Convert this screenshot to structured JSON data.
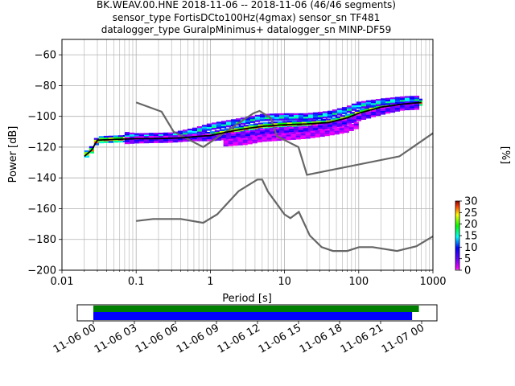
{
  "chart_data": {
    "type": "heatmap",
    "title_lines": [
      "BK.WEAV.00.HNE   2018-11-06 -- 2018-11-06  (46/46 segments)",
      "sensor_type FortisDCto100Hz(4gmax) sensor_sn TF481",
      "datalogger_type GuralpMinimus+ datalogger_sn MINP-DF59"
    ],
    "xlabel": "Period [s]",
    "ylabel": "Power [dB]",
    "xscale": "log",
    "xlim": [
      0.01,
      1000
    ],
    "ylim": [
      -200,
      -50
    ],
    "xtick_values": [
      0.01,
      0.1,
      1,
      10,
      100,
      1000
    ],
    "xtick_labels": [
      "0.01",
      "0.1",
      "1",
      "10",
      "100",
      "1000"
    ],
    "ytick_values": [
      -60,
      -80,
      -100,
      -120,
      -140,
      -160,
      -180,
      -200
    ],
    "ytick_labels": [
      "−60",
      "−80",
      "−100",
      "−120",
      "−140",
      "−160",
      "−180",
      "−200"
    ],
    "grid": true,
    "colorbar": {
      "label": "[%]",
      "min": 0,
      "max": 30,
      "tick_values": [
        0,
        5,
        10,
        15,
        20,
        25,
        30
      ],
      "tick_labels": [
        "0",
        "5",
        "10",
        "15",
        "20",
        "25",
        "30"
      ]
    },
    "noise_models": [
      {
        "id": "nhnm",
        "points": [
          [
            0.1,
            -91
          ],
          [
            0.22,
            -97
          ],
          [
            0.32,
            -110
          ],
          [
            0.8,
            -120
          ],
          [
            3.8,
            -98
          ],
          [
            4.6,
            -96.5
          ],
          [
            6.5,
            -101
          ],
          [
            7.9,
            -113
          ],
          [
            15.4,
            -120
          ],
          [
            20,
            -138
          ],
          [
            354,
            -126
          ],
          [
            1000,
            -111
          ]
        ]
      },
      {
        "id": "nlnm",
        "points": [
          [
            0.1,
            -168
          ],
          [
            0.17,
            -166.7
          ],
          [
            0.4,
            -166.7
          ],
          [
            0.8,
            -169.2
          ],
          [
            1.24,
            -163.7
          ],
          [
            2.4,
            -148.6
          ],
          [
            4.3,
            -141.1
          ],
          [
            5,
            -141.1
          ],
          [
            6,
            -149
          ],
          [
            10,
            -163.8
          ],
          [
            12,
            -166.2
          ],
          [
            15.6,
            -162.1
          ],
          [
            21.9,
            -177.5
          ],
          [
            31.6,
            -185
          ],
          [
            45,
            -187.5
          ],
          [
            70,
            -187.5
          ],
          [
            101,
            -185
          ],
          [
            154,
            -185
          ],
          [
            328,
            -187.5
          ],
          [
            600,
            -184.4
          ],
          [
            1000,
            -178
          ]
        ]
      }
    ],
    "mean_curve": {
      "points": [
        [
          0.02,
          -126
        ],
        [
          0.025,
          -122
        ],
        [
          0.03,
          -115.5
        ],
        [
          0.05,
          -115
        ],
        [
          0.1,
          -114.5
        ],
        [
          0.2,
          -114.5
        ],
        [
          0.4,
          -114
        ],
        [
          0.7,
          -113
        ],
        [
          1,
          -112.5
        ],
        [
          2,
          -109.5
        ],
        [
          3,
          -108
        ],
        [
          5,
          -106.5
        ],
        [
          10,
          -105.5
        ],
        [
          20,
          -105
        ],
        [
          40,
          -104
        ],
        [
          70,
          -101
        ],
        [
          100,
          -98
        ],
        [
          200,
          -94
        ],
        [
          400,
          -92
        ],
        [
          700,
          -91
        ]
      ]
    },
    "psd_bands": [
      {
        "points": [
          [
            0.02,
            -126
          ],
          [
            0.025,
            -122
          ],
          [
            0.03,
            -115.5
          ],
          [
            0.05,
            -115
          ],
          [
            0.1,
            -114.5
          ],
          [
            0.2,
            -114.5
          ],
          [
            0.4,
            -114
          ],
          [
            0.7,
            -113
          ],
          [
            1,
            -112.5
          ],
          [
            2,
            -109.5
          ],
          [
            3,
            -108
          ],
          [
            5,
            -106.5
          ],
          [
            10,
            -105.5
          ],
          [
            20,
            -105
          ],
          [
            40,
            -104
          ],
          [
            70,
            -101
          ],
          [
            100,
            -98
          ],
          [
            200,
            -94
          ],
          [
            400,
            -92
          ],
          [
            700,
            -91
          ]
        ],
        "half_width_db": 1.5,
        "pct": 28
      },
      {
        "points": [
          [
            0.07,
            -112.5
          ],
          [
            0.1,
            -113.5
          ],
          [
            0.3,
            -113
          ],
          [
            0.6,
            -110
          ],
          [
            1,
            -107
          ],
          [
            2,
            -104.5
          ],
          [
            3,
            -103
          ],
          [
            5,
            -101
          ],
          [
            10,
            -100.5
          ],
          [
            20,
            -100.5
          ],
          [
            40,
            -99
          ],
          [
            70,
            -96
          ],
          [
            100,
            -93
          ],
          [
            200,
            -91
          ],
          [
            400,
            -89.5
          ],
          [
            700,
            -89
          ]
        ],
        "half_width_db": 1.5,
        "pct": 16
      },
      {
        "points": [
          [
            0.07,
            -116
          ],
          [
            0.1,
            -115.5
          ],
          [
            0.3,
            -115
          ],
          [
            0.6,
            -114
          ],
          [
            1,
            -114
          ],
          [
            2,
            -113
          ],
          [
            3,
            -112
          ],
          [
            5,
            -110.5
          ],
          [
            10,
            -109.5
          ],
          [
            20,
            -109
          ],
          [
            40,
            -106
          ],
          [
            70,
            -104
          ],
          [
            100,
            -101
          ],
          [
            200,
            -97
          ],
          [
            400,
            -94
          ],
          [
            700,
            -93.5
          ]
        ],
        "half_width_db": 1.5,
        "pct": 8
      },
      {
        "points": [
          [
            1.5,
            -117
          ],
          [
            3,
            -116
          ],
          [
            5,
            -114
          ],
          [
            10,
            -113
          ],
          [
            20,
            -112
          ],
          [
            40,
            -110
          ],
          [
            70,
            -108
          ],
          [
            100,
            -105
          ]
        ],
        "half_width_db": 1.0,
        "pct": 3
      }
    ],
    "timeline": {
      "tick_labels": [
        "11-06 00",
        "11-06 03",
        "11-06 06",
        "11-06 09",
        "11-06 12",
        "11-06 15",
        "11-06 18",
        "11-06 21",
        "11-07 00"
      ],
      "data_hours": [
        0,
        23.8
      ],
      "used_hours": [
        0,
        23.3
      ],
      "data_color": "#008000",
      "used_color": "#0000ff"
    }
  }
}
